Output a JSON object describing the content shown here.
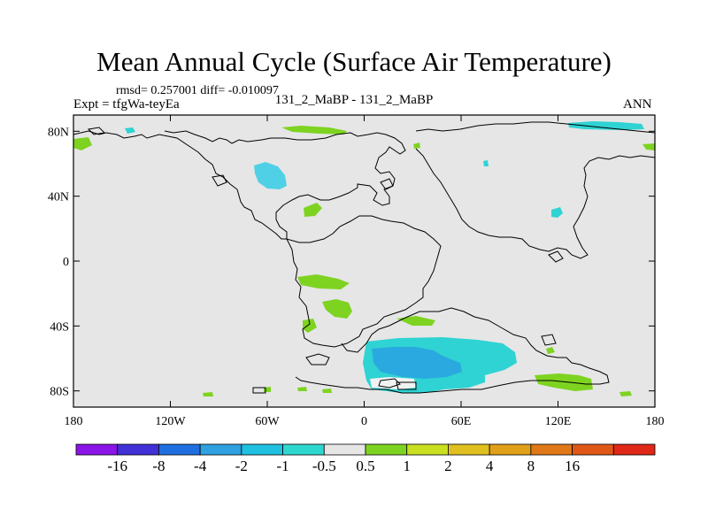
{
  "title": "Mean Annual Cycle (Surface Air Temperature)",
  "stats": "rmsd= 0.257001 diff= -0.010097",
  "experiment": "Expt = tfgWa-teyEa",
  "case": "131_2_MaBP - 131_2_MaBP",
  "season": "ANN",
  "colors": {
    "background": "#e6e6e6",
    "coastline": "#000000",
    "green": "#7ed321",
    "cyan": "#2fd3d3",
    "cyan_light": "#4fd0e6",
    "blue": "#2aa9e0"
  },
  "map": {
    "lat_ticks": [
      {
        "value": 80,
        "label": "80N"
      },
      {
        "value": 40,
        "label": "40N"
      },
      {
        "value": 0,
        "label": "0"
      },
      {
        "value": -40,
        "label": "40S"
      },
      {
        "value": -80,
        "label": "80S"
      }
    ],
    "lon_ticks": [
      {
        "value": -180,
        "label": "180"
      },
      {
        "value": -120,
        "label": "120W"
      },
      {
        "value": -60,
        "label": "60W"
      },
      {
        "value": 0,
        "label": "0"
      },
      {
        "value": 60,
        "label": "60E"
      },
      {
        "value": 120,
        "label": "120E"
      },
      {
        "value": 180,
        "label": "180"
      }
    ]
  },
  "colorbar": {
    "colors": [
      "#8a15e6",
      "#4030d6",
      "#1f6fe0",
      "#2fa0e0",
      "#20c0e0",
      "#2fd8cf",
      "#e6e6e6",
      "#7ed321",
      "#c9e020",
      "#e0c020",
      "#e0a018",
      "#e07818",
      "#e05818",
      "#e02818"
    ],
    "labels": [
      "-16",
      "-8",
      "-4",
      "-2",
      "-1",
      "-0.5",
      "0.5",
      "1",
      "2",
      "4",
      "8",
      "16"
    ]
  }
}
